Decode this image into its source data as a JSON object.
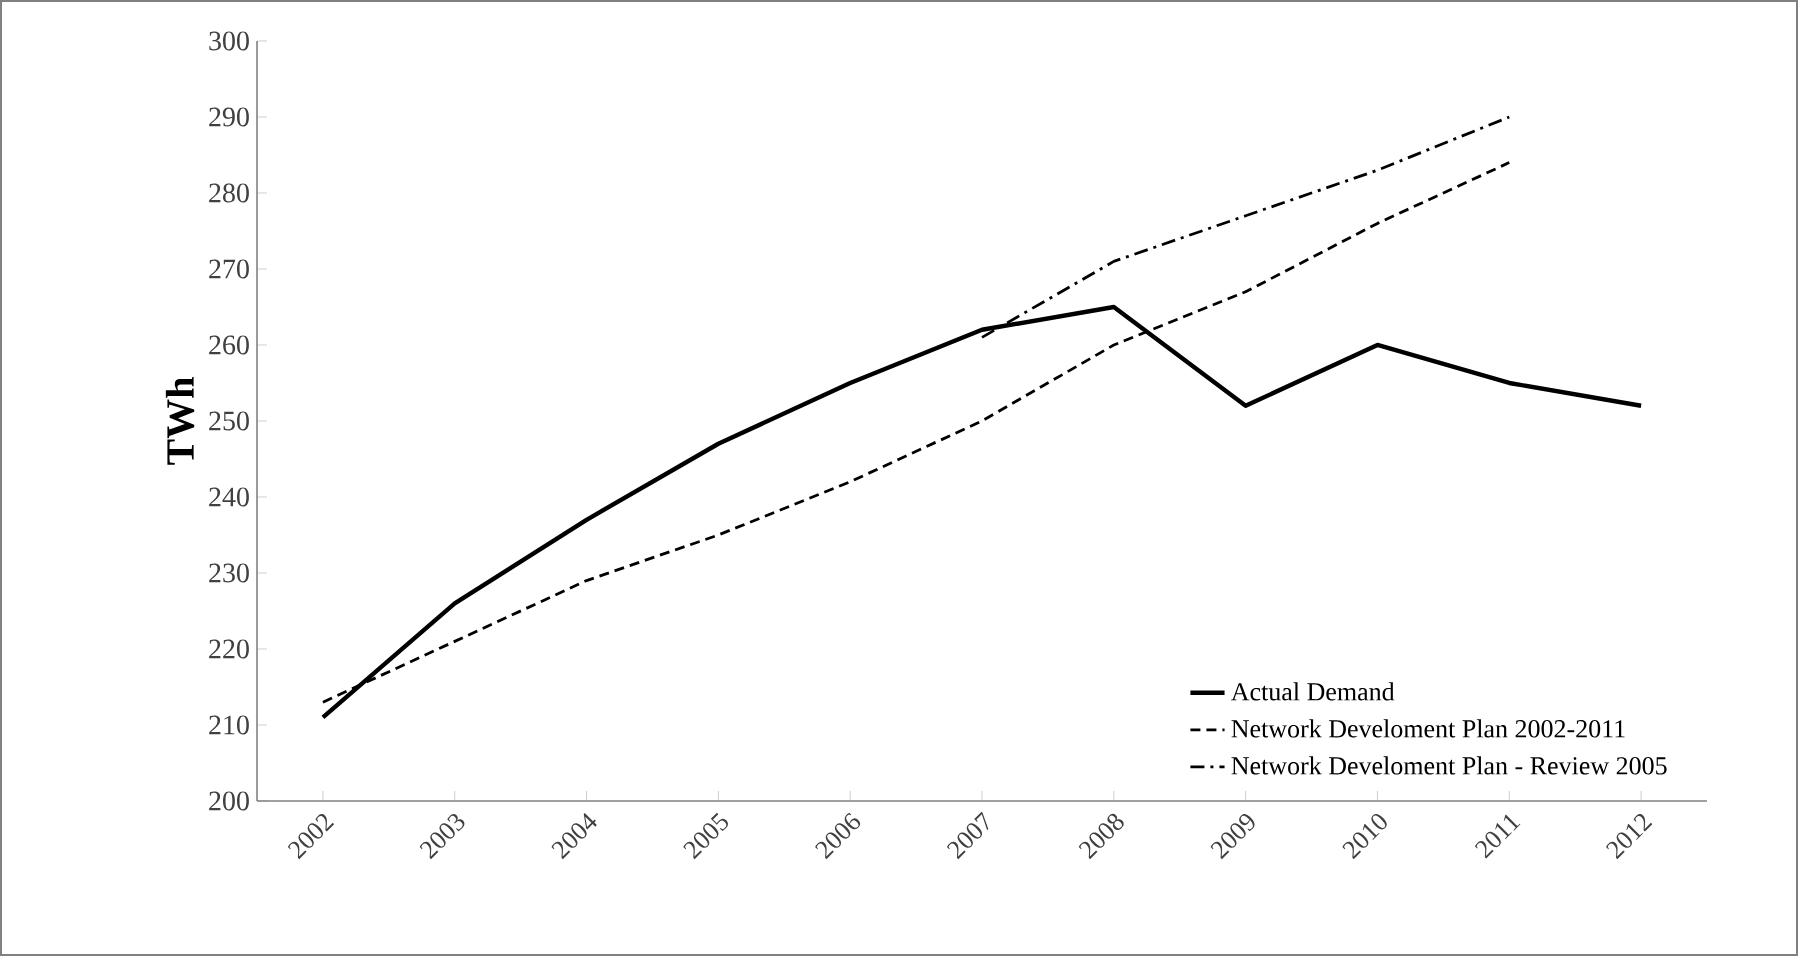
{
  "chart_data": {
    "type": "line",
    "ylabel": "TWh",
    "categories": [
      "2002",
      "2003",
      "2004",
      "2005",
      "2006",
      "2007",
      "2008",
      "2009",
      "2010",
      "2011",
      "2012"
    ],
    "series": [
      {
        "name": "Actual Demand",
        "color": "#000000",
        "line_style": "solid",
        "values": [
          211,
          226,
          237,
          247,
          255,
          262,
          265,
          252,
          260,
          255,
          252
        ]
      },
      {
        "name": "Network Develoment Plan 2002-2011",
        "color": "#000000",
        "line_style": "dashed",
        "values": [
          213,
          221,
          229,
          235,
          242,
          250,
          260,
          267,
          276,
          284,
          null
        ]
      },
      {
        "name": "Network Develoment Plan - Review 2005",
        "color": "#000000",
        "line_style": "dashdot",
        "values": [
          null,
          null,
          null,
          null,
          null,
          261,
          271,
          277,
          283,
          290,
          null
        ]
      }
    ],
    "ylim": [
      200,
      300
    ],
    "yticks": [
      200,
      210,
      220,
      230,
      240,
      250,
      260,
      270,
      280,
      290,
      300
    ],
    "grid": false,
    "legend": "bottom right",
    "marker": "none"
  }
}
